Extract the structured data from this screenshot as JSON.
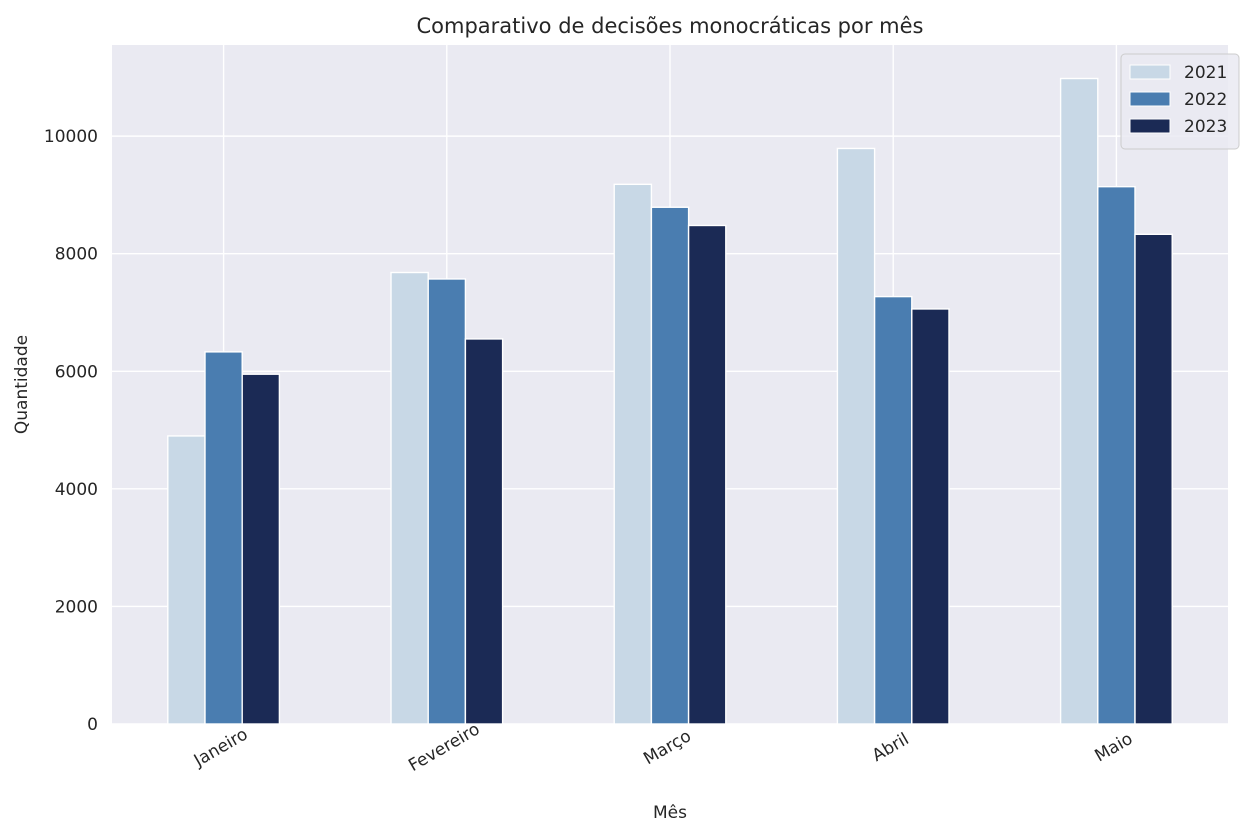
{
  "chart_data": {
    "type": "bar",
    "title": "Comparativo de decisões monocráticas por mês",
    "xlabel": "Mês",
    "ylabel": "Quantidade",
    "categories": [
      "Janeiro",
      "Fevereiro",
      "Março",
      "Abril",
      "Maio"
    ],
    "series": [
      {
        "name": "2021",
        "color": "#c8d8e6",
        "values": [
          4900,
          7680,
          9180,
          9790,
          10980
        ]
      },
      {
        "name": "2022",
        "color": "#4a7db0",
        "values": [
          6330,
          7570,
          8790,
          7270,
          9140
        ]
      },
      {
        "name": "2023",
        "color": "#1b2a55",
        "values": [
          5950,
          6550,
          8480,
          7060,
          8330
        ]
      }
    ],
    "ylim": [
      0,
      11550
    ],
    "yticks": [
      0,
      2000,
      4000,
      6000,
      8000,
      10000
    ],
    "grid": true,
    "legend_position": "top-right",
    "background_color": "#eaeaf2"
  }
}
